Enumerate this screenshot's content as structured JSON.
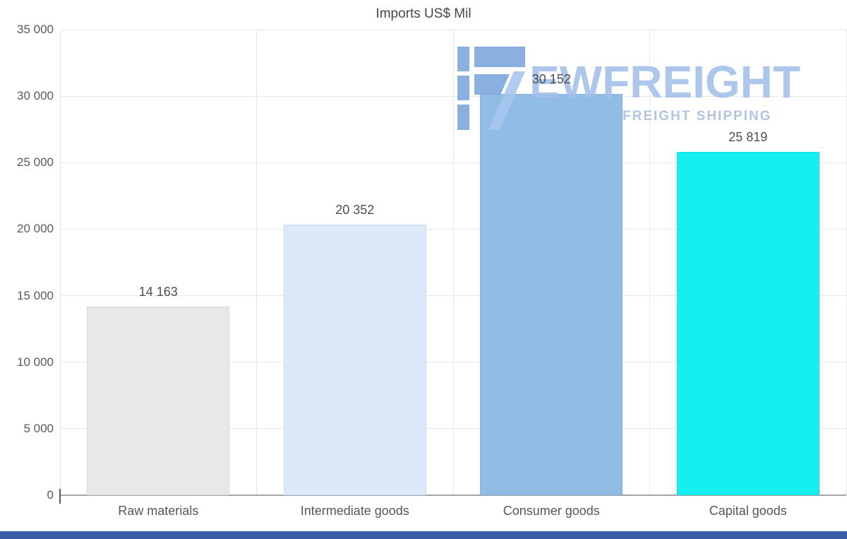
{
  "title": "Imports US$ Mil",
  "watermark": {
    "brand": "EWFREIGHT",
    "tagline": "FREIGHT SHIPPING"
  },
  "chart_data": {
    "type": "bar",
    "title": "Imports US$ Mil",
    "categories": [
      "Raw materials",
      "Intermediate goods",
      "Consumer goods",
      "Capital goods"
    ],
    "values": [
      14163,
      20352,
      30152,
      25819
    ],
    "value_labels": [
      "14 163",
      "20 352",
      "30 152",
      "25 819"
    ],
    "bar_colors": [
      "#e8e8e8",
      "#dce9f8",
      "#90bce6",
      "#15efef"
    ],
    "bar_border_colors": [
      "#d9d9d9",
      "#cadef2",
      "#84b1dd",
      "#10e2e2"
    ],
    "ylim": [
      0,
      35000
    ],
    "yticks": [
      0,
      5000,
      10000,
      15000,
      20000,
      25000,
      30000,
      35000
    ],
    "ytick_labels": [
      "0",
      "5 000",
      "10 000",
      "15 000",
      "20 000",
      "25 000",
      "30 000",
      "35 000"
    ],
    "xlabel": "",
    "ylabel": "",
    "grid": true,
    "legend": false
  },
  "style": {
    "footer_strip_color": "#3a5ca6",
    "grid_color": "#e7e7e7",
    "baseline_color": "#a6a6a6",
    "text_color": "#595959",
    "watermark_brand_color": "#a4c0ea",
    "watermark_tagline_color": "#aabfe4",
    "watermark_icon_color": "#7ea8dd",
    "watermark_icon_accent_color": "#a9c7ee"
  }
}
